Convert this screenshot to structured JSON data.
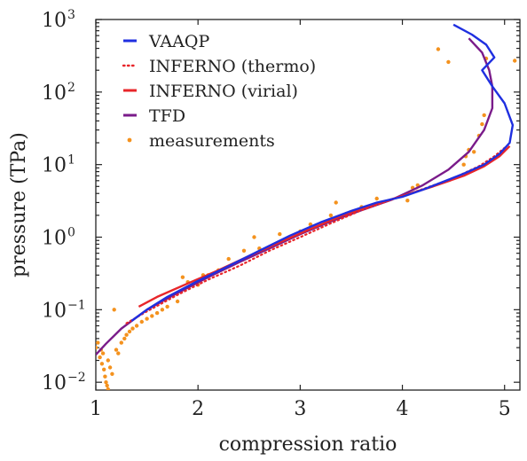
{
  "chart_data": {
    "type": "line",
    "xlabel": "compression ratio",
    "ylabel": "pressure (TPa)",
    "xlim": [
      1,
      5.15
    ],
    "ylim": [
      0.0078,
      1000
    ],
    "yscale": "log",
    "x_ticks": [
      {
        "value": 1,
        "label": "1"
      },
      {
        "value": 2,
        "label": "2"
      },
      {
        "value": 3,
        "label": "3"
      },
      {
        "value": 4,
        "label": "4"
      },
      {
        "value": 5,
        "label": "5"
      }
    ],
    "y_ticks": [
      {
        "value": 0.01,
        "base": "10",
        "exp": "−2"
      },
      {
        "value": 0.1,
        "base": "10",
        "exp": "−1"
      },
      {
        "value": 1,
        "base": "10",
        "exp": "0"
      },
      {
        "value": 10,
        "base": "10",
        "exp": "1"
      },
      {
        "value": 100,
        "base": "10",
        "exp": "2"
      },
      {
        "value": 1000,
        "base": "10",
        "exp": "3"
      }
    ],
    "grid": false,
    "legend_position": "top-left",
    "series": [
      {
        "name": "VAAQP",
        "color": "#1f2fe0",
        "style": "solid",
        "points": [
          [
            1.35,
            0.07
          ],
          [
            1.5,
            0.1
          ],
          [
            1.7,
            0.15
          ],
          [
            2.0,
            0.25
          ],
          [
            2.3,
            0.4
          ],
          [
            2.6,
            0.65
          ],
          [
            2.9,
            1.05
          ],
          [
            3.2,
            1.6
          ],
          [
            3.5,
            2.3
          ],
          [
            3.75,
            3.0
          ],
          [
            4.0,
            3.6
          ],
          [
            4.2,
            4.5
          ],
          [
            4.4,
            5.8
          ],
          [
            4.6,
            7.5
          ],
          [
            4.8,
            10
          ],
          [
            4.95,
            14
          ],
          [
            5.05,
            20
          ],
          [
            5.08,
            35
          ],
          [
            5.0,
            70
          ],
          [
            4.88,
            120
          ],
          [
            4.78,
            200
          ],
          [
            4.9,
            300
          ],
          [
            4.82,
            450
          ],
          [
            4.68,
            620
          ],
          [
            4.5,
            850
          ]
        ]
      },
      {
        "name": "INFERNO (thermo)",
        "color": "#e8262a",
        "style": "dotted",
        "points": [
          [
            1.3,
            0.065
          ],
          [
            1.5,
            0.095
          ],
          [
            1.8,
            0.16
          ],
          [
            2.1,
            0.26
          ],
          [
            2.4,
            0.4
          ],
          [
            2.7,
            0.65
          ],
          [
            3.0,
            1.0
          ],
          [
            3.3,
            1.55
          ],
          [
            3.6,
            2.35
          ],
          [
            3.9,
            3.3
          ],
          [
            4.2,
            4.6
          ],
          [
            4.5,
            6.5
          ],
          [
            4.75,
            9.5
          ],
          [
            4.9,
            13
          ],
          [
            5.0,
            17
          ]
        ]
      },
      {
        "name": "INFERNO (virial)",
        "color": "#e8262a",
        "style": "solid",
        "points": [
          [
            1.42,
            0.11
          ],
          [
            1.6,
            0.15
          ],
          [
            1.9,
            0.23
          ],
          [
            2.2,
            0.35
          ],
          [
            2.5,
            0.55
          ],
          [
            2.8,
            0.85
          ],
          [
            3.1,
            1.3
          ],
          [
            3.4,
            1.95
          ],
          [
            3.7,
            2.75
          ],
          [
            4.0,
            3.7
          ],
          [
            4.3,
            5.0
          ],
          [
            4.6,
            7.0
          ],
          [
            4.8,
            9.5
          ],
          [
            4.95,
            13
          ],
          [
            5.05,
            18
          ]
        ]
      },
      {
        "name": "TFD",
        "color": "#7a1b8a",
        "style": "solid",
        "points": [
          [
            1.0,
            0.024
          ],
          [
            1.1,
            0.034
          ],
          [
            1.25,
            0.055
          ],
          [
            1.5,
            0.1
          ],
          [
            1.8,
            0.17
          ],
          [
            2.1,
            0.28
          ],
          [
            2.4,
            0.45
          ],
          [
            2.7,
            0.7
          ],
          [
            3.0,
            1.1
          ],
          [
            3.3,
            1.65
          ],
          [
            3.6,
            2.35
          ],
          [
            3.9,
            3.3
          ],
          [
            4.2,
            5.2
          ],
          [
            4.45,
            8.5
          ],
          [
            4.65,
            15
          ],
          [
            4.8,
            30
          ],
          [
            4.88,
            60
          ],
          [
            4.88,
            120
          ],
          [
            4.85,
            200
          ],
          [
            4.78,
            350
          ],
          [
            4.65,
            550
          ]
        ]
      },
      {
        "name": "measurements",
        "color": "#f4921e",
        "style": "points",
        "points": [
          [
            1.0,
            0.03
          ],
          [
            1.02,
            0.035
          ],
          [
            1.04,
            0.022
          ],
          [
            1.05,
            0.028
          ],
          [
            1.06,
            0.018
          ],
          [
            1.07,
            0.025
          ],
          [
            1.08,
            0.015
          ],
          [
            1.09,
            0.012
          ],
          [
            1.1,
            0.01
          ],
          [
            1.11,
            0.009
          ],
          [
            1.12,
            0.008
          ],
          [
            1.12,
            0.02
          ],
          [
            1.14,
            0.016
          ],
          [
            1.16,
            0.013
          ],
          [
            1.18,
            0.1
          ],
          [
            1.2,
            0.028
          ],
          [
            1.22,
            0.025
          ],
          [
            1.25,
            0.035
          ],
          [
            1.28,
            0.04
          ],
          [
            1.3,
            0.045
          ],
          [
            1.33,
            0.05
          ],
          [
            1.36,
            0.055
          ],
          [
            1.4,
            0.06
          ],
          [
            1.45,
            0.068
          ],
          [
            1.5,
            0.075
          ],
          [
            1.55,
            0.082
          ],
          [
            1.6,
            0.09
          ],
          [
            1.65,
            0.1
          ],
          [
            1.7,
            0.11
          ],
          [
            1.8,
            0.13
          ],
          [
            1.85,
            0.28
          ],
          [
            1.9,
            0.24
          ],
          [
            2.0,
            0.22
          ],
          [
            2.05,
            0.3
          ],
          [
            2.1,
            0.3
          ],
          [
            2.2,
            0.35
          ],
          [
            2.3,
            0.5
          ],
          [
            2.45,
            0.65
          ],
          [
            2.55,
            1.0
          ],
          [
            2.6,
            0.7
          ],
          [
            2.8,
            1.1
          ],
          [
            3.0,
            1.2
          ],
          [
            3.1,
            1.5
          ],
          [
            3.3,
            2.0
          ],
          [
            3.35,
            3.0
          ],
          [
            3.45,
            2.1
          ],
          [
            3.6,
            2.6
          ],
          [
            3.75,
            3.4
          ],
          [
            4.05,
            3.2
          ],
          [
            4.1,
            4.8
          ],
          [
            4.15,
            5.2
          ],
          [
            4.35,
            390
          ],
          [
            4.45,
            260
          ],
          [
            4.6,
            10
          ],
          [
            4.62,
            13
          ],
          [
            4.65,
            16
          ],
          [
            4.7,
            15
          ],
          [
            4.75,
            25
          ],
          [
            4.78,
            36
          ],
          [
            4.8,
            48
          ],
          [
            5.1,
            270
          ],
          [
            4.82,
            290
          ]
        ]
      }
    ]
  }
}
